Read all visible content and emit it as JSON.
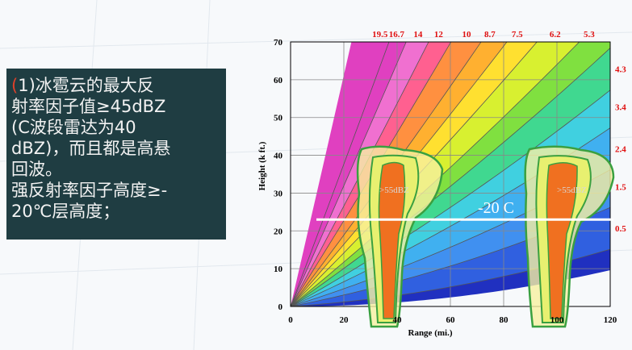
{
  "note": {
    "lines": [
      "(1)冰雹云的最大反",
      "射率因子值≥45dBZ",
      "(C波段雷达为40",
      "dBZ)，而且都是高悬",
      "回波。",
      "强反射率因子高度≥-",
      "20℃层高度；"
    ]
  },
  "chart_data": {
    "type": "beam",
    "xlabel": "Range (mi.)",
    "ylabel": "Height (k ft.)",
    "xlim": [
      0,
      120
    ],
    "xticks": [
      0,
      20,
      40,
      60,
      80,
      100,
      120
    ],
    "ylim": [
      0,
      70
    ],
    "yticks": [
      0,
      10,
      20,
      30,
      40,
      50,
      60,
      70
    ],
    "grid": true,
    "angles": [
      19.5,
      16.7,
      14,
      12,
      10,
      8.7,
      7.5,
      6.2,
      5.3,
      4.3,
      3.4,
      2.4,
      1.5,
      0.5
    ],
    "colors": [
      "#e040c0",
      "#f070d0",
      "#ff6090",
      "#ff9040",
      "#ffb030",
      "#ffe030",
      "#d8f030",
      "#80e040",
      "#40d890",
      "#40d0e0",
      "#40b0f0",
      "#4090f0",
      "#3060e0",
      "#2030c0"
    ],
    "isotherm": {
      "label": "-20 C",
      "height": 23
    },
    "echo_labels": [
      ">55dBZ",
      ">55dBZ"
    ]
  }
}
